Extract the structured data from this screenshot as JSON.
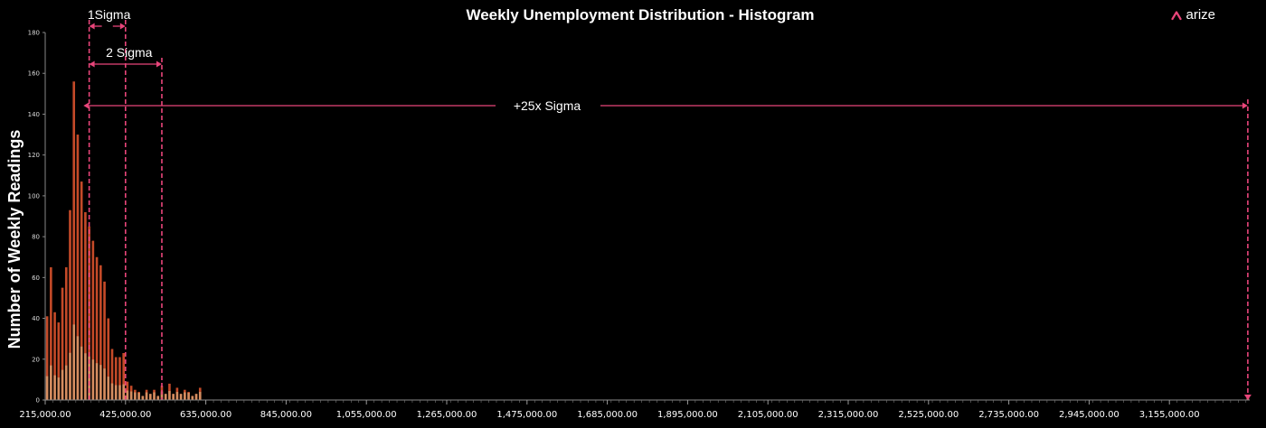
{
  "brand": {
    "logo_text": "arize",
    "logo_icon": "arize-caret-icon",
    "accent": "#e8457a"
  },
  "chart_data": {
    "type": "bar",
    "title": "Weekly Unemployment Distribution - Histogram",
    "ylabel": "Number of Weekly Readings",
    "xlabel": "",
    "ylim": [
      0,
      180
    ],
    "yticks": [
      0,
      20,
      40,
      60,
      80,
      100,
      120,
      140,
      160,
      180
    ],
    "xlim": [
      215000,
      3365000
    ],
    "xticks": [
      215000,
      425000,
      635000,
      845000,
      1055000,
      1265000,
      1475000,
      1685000,
      1895000,
      2105000,
      2315000,
      2525000,
      2735000,
      2945000,
      3155000
    ],
    "xtick_labels": [
      "215,000.00",
      "425,000.00",
      "635,000.00",
      "845,000.00",
      "1,055,000.00",
      "1,265,000.00",
      "1,475,000.00",
      "1,685,000.00",
      "1,895,000.00",
      "2,105,000.00",
      "2,315,000.00",
      "2,525,000.00",
      "2,735,000.00",
      "2,945,000.00",
      "3,155,000.00"
    ],
    "bin_width": 10000,
    "bin_starts": [
      215000,
      225000,
      235000,
      245000,
      255000,
      265000,
      275000,
      285000,
      295000,
      305000,
      315000,
      325000,
      335000,
      345000,
      355000,
      365000,
      375000,
      385000,
      395000,
      405000,
      415000,
      425000,
      435000,
      445000,
      455000,
      465000,
      475000,
      485000,
      495000,
      505000,
      515000,
      525000,
      535000,
      545000,
      555000,
      565000,
      575000,
      585000,
      595000,
      605000,
      615000,
      625000,
      635000,
      3355000
    ],
    "values": [
      41,
      65,
      43,
      38,
      55,
      65,
      93,
      156,
      130,
      107,
      92,
      85,
      78,
      70,
      66,
      58,
      40,
      25,
      21,
      21,
      23,
      9,
      7,
      5,
      4,
      2,
      5,
      3,
      5,
      2,
      7,
      3,
      8,
      3,
      6,
      3,
      5,
      4,
      2,
      3,
      6,
      0,
      0,
      2
    ],
    "bar_color": "#c44a28",
    "bar_highlight_color": "#e3c58e",
    "annotations": [
      {
        "label": "1Sigma",
        "from": 330000,
        "to": 425000
      },
      {
        "label": "2 Sigma",
        "from": 330000,
        "to": 520000
      },
      {
        "label": "+25x Sigma",
        "from": 315000,
        "to": 3360000
      }
    ],
    "annotation_color": "#e8457a",
    "grid": false,
    "legend": "none"
  }
}
